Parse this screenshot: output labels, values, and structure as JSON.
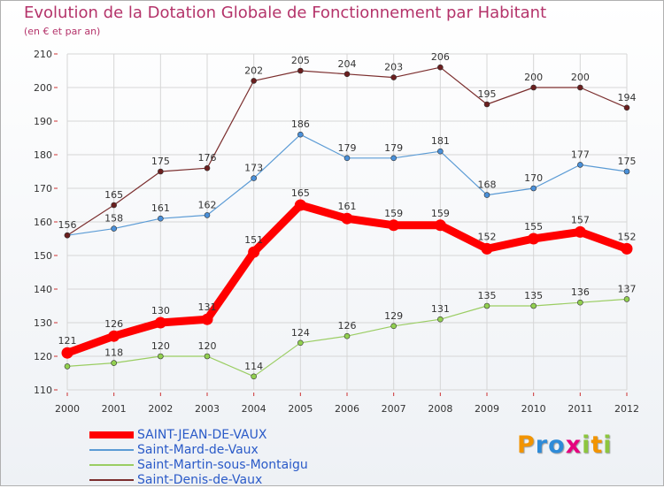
{
  "chart_data": {
    "type": "line",
    "title": "Evolution de la Dotation Globale de Fonctionnement par Habitant",
    "subtitle": "(en € et par an)",
    "xlabel": "",
    "ylabel": "",
    "categories": [
      "2000",
      "2001",
      "2002",
      "2003",
      "2004",
      "2005",
      "2006",
      "2007",
      "2008",
      "2009",
      "2010",
      "2011",
      "2012"
    ],
    "ylim": [
      110,
      210
    ],
    "yticks": [
      110,
      120,
      130,
      140,
      150,
      160,
      170,
      180,
      190,
      200,
      210
    ],
    "legend_position": "bottom-left",
    "series": [
      {
        "name": "Saint-Martin-sous-Montaigu",
        "color": "#9acd62",
        "dot_color": "#92d050",
        "emphasis": false,
        "values": [
          117,
          118,
          120,
          120,
          114,
          124,
          126,
          129,
          131,
          135,
          135,
          136,
          137
        ],
        "labels": [
          "",
          "118",
          "120",
          "120",
          "114",
          "124",
          "126",
          "129",
          "131",
          "135",
          "135",
          "136",
          "137"
        ]
      },
      {
        "name": "Saint-Mard-de-Vaux",
        "color": "#5b9bd5",
        "dot_color": "#4a90d9",
        "emphasis": false,
        "values": [
          156,
          158,
          161,
          162,
          173,
          186,
          179,
          179,
          181,
          168,
          170,
          177,
          175
        ],
        "labels": [
          "",
          "158",
          "161",
          "162",
          "173",
          "186",
          "179",
          "179",
          "181",
          "168",
          "170",
          "177",
          "175"
        ]
      },
      {
        "name": "Saint-Denis-de-Vaux",
        "color": "#7b2e2e",
        "dot_color": "#6b1f1f",
        "emphasis": false,
        "values": [
          156,
          165,
          175,
          176,
          202,
          205,
          204,
          203,
          206,
          195,
          200,
          200,
          194
        ],
        "labels": [
          "156",
          "165",
          "175",
          "176",
          "202",
          "205",
          "204",
          "203",
          "206",
          "195",
          "200",
          "200",
          "194"
        ]
      },
      {
        "name": "SAINT-JEAN-DE-VAUX",
        "color": "#ff0000",
        "dot_color": "#ff0000",
        "emphasis": true,
        "values": [
          121,
          126,
          130,
          131,
          151,
          165,
          161,
          159,
          159,
          152,
          155,
          157,
          152
        ],
        "labels": [
          "121",
          "126",
          "130",
          "131",
          "151",
          "165",
          "161",
          "159",
          "159",
          "152",
          "155",
          "157",
          "152"
        ]
      }
    ],
    "legend": [
      {
        "name": "SAINT-JEAN-DE-VAUX",
        "color": "#ff0000",
        "thickness": 8
      },
      {
        "name": "Saint-Mard-de-Vaux",
        "color": "#5b9bd5",
        "thickness": 2
      },
      {
        "name": "Saint-Martin-sous-Montaigu",
        "color": "#9acd62",
        "thickness": 2
      },
      {
        "name": "Saint-Denis-de-Vaux",
        "color": "#7b2e2e",
        "thickness": 2
      }
    ]
  },
  "logo": {
    "text": "Proxiti",
    "letters": [
      {
        "ch": "P",
        "color": "#f29400"
      },
      {
        "ch": "r",
        "color": "#2e8bd8"
      },
      {
        "ch": "o",
        "color": "#2e8bd8"
      },
      {
        "ch": "x",
        "color": "#e6007e"
      },
      {
        "ch": "i",
        "color": "#8dc63f"
      },
      {
        "ch": "t",
        "color": "#f29400"
      },
      {
        "ch": "i",
        "color": "#8dc63f"
      }
    ]
  }
}
